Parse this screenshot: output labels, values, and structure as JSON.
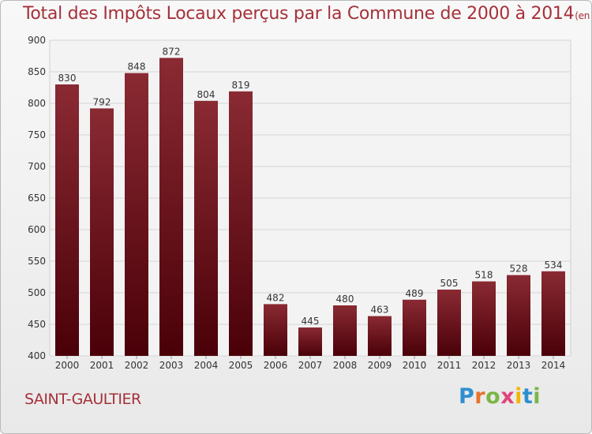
{
  "title": "Total des Impôts Locaux perçus par la Commune de 2000 à 2014",
  "title_unit": "(en milliers d'€)",
  "commune": "SAINT-GAULTIER",
  "logo": {
    "text": "Proxiti",
    "colors": [
      "#2e8fcf",
      "#e8732a",
      "#7ab648",
      "#e0457b",
      "#f4b400",
      "#2e8fcf",
      "#7ab648"
    ]
  },
  "chart_data": {
    "type": "bar",
    "categories": [
      "2000",
      "2001",
      "2002",
      "2003",
      "2004",
      "2005",
      "2006",
      "2007",
      "2008",
      "2009",
      "2010",
      "2011",
      "2012",
      "2013",
      "2014"
    ],
    "values": [
      830,
      792,
      848,
      872,
      804,
      819,
      482,
      445,
      480,
      463,
      489,
      505,
      518,
      528,
      534
    ],
    "ylim": [
      400,
      900
    ],
    "yticks": [
      400,
      450,
      500,
      550,
      600,
      650,
      700,
      750,
      800,
      850,
      900
    ],
    "grid": true,
    "bar_color_top": "#8a2a33",
    "bar_color_bottom": "#4a0008",
    "axis_color": "#cfcfcf",
    "grid_color": "#d6d6d6",
    "label_color": "#333333"
  }
}
